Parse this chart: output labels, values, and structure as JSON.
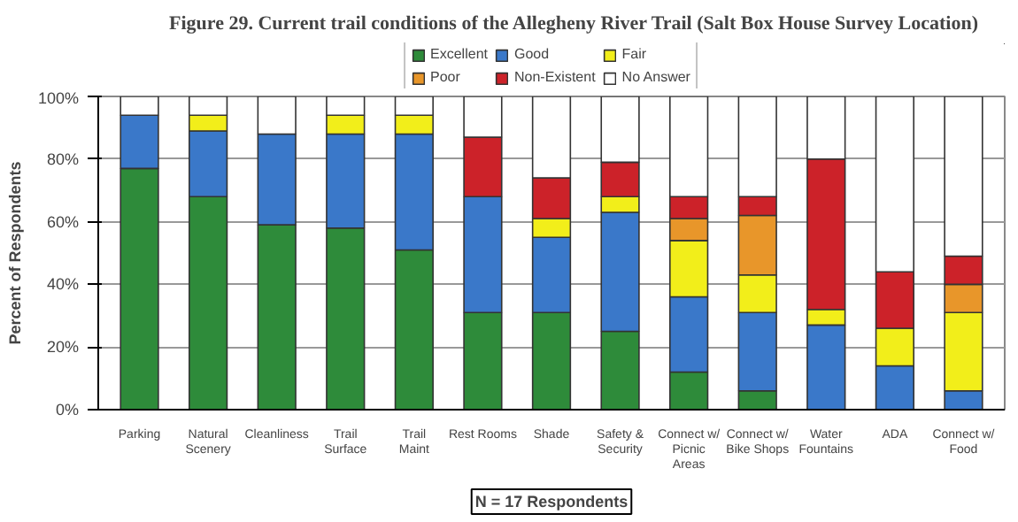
{
  "chart_data": {
    "type": "bar",
    "stacked": true,
    "title": "Figure 29.  Current trail conditions of the Allegheny River Trail (Salt Box House Survey Location)",
    "ylabel": "Percent of Respondents",
    "categories": [
      "Parking",
      "Natural Scenery",
      "Cleanliness",
      "Trail Surface",
      "Trail Maint",
      "Rest Rooms",
      "Shade",
      "Safety & Security",
      "Connect w/ Picnic Areas",
      "Connect w/ Bike Shops",
      "Water Fountains",
      "ADA",
      "Connect w/ Food"
    ],
    "series": [
      {
        "name": "Excellent",
        "color": "#2e8b3a",
        "values": [
          77,
          68,
          59,
          58,
          51,
          31,
          31,
          25,
          12,
          6,
          null,
          null,
          null
        ]
      },
      {
        "name": "Good",
        "color": "#3a78c9",
        "values": [
          17,
          21,
          29,
          30,
          37,
          37,
          24,
          38,
          24,
          25,
          27,
          14,
          6
        ]
      },
      {
        "name": "Fair",
        "color": "#f2ee1a",
        "values": [
          null,
          5,
          null,
          6,
          6,
          null,
          6,
          5,
          18,
          12,
          5,
          12,
          25
        ]
      },
      {
        "name": "Poor",
        "color": "#e8962a",
        "values": [
          null,
          null,
          null,
          null,
          null,
          null,
          null,
          null,
          7,
          19,
          null,
          null,
          9
        ]
      },
      {
        "name": "Non-Existent",
        "color": "#cc2229",
        "values": [
          null,
          null,
          null,
          null,
          null,
          19,
          13,
          11,
          7,
          6,
          48,
          18,
          9
        ]
      },
      {
        "name": "No Answer",
        "color": "#ffffff",
        "values": [
          6,
          6,
          12,
          6,
          6,
          13,
          26,
          21,
          32,
          32,
          20,
          56,
          51
        ]
      }
    ],
    "ylim": [
      0,
      100
    ],
    "yticks": [
      {
        "value": 0,
        "label": "0%"
      },
      {
        "value": 20,
        "label": "20%"
      },
      {
        "value": 40,
        "label": "40%"
      },
      {
        "value": 60,
        "label": "60%"
      },
      {
        "value": 80,
        "label": "80%"
      },
      {
        "value": 100,
        "label": "100%"
      }
    ],
    "grid": "y",
    "legend": "top",
    "annotations": [
      "N = 17 Respondents"
    ]
  }
}
